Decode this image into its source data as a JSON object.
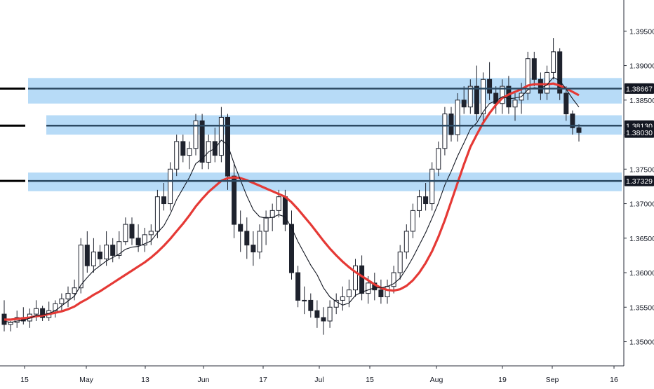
{
  "chart_data": {
    "type": "candlestick",
    "title": "",
    "xlabel": "",
    "ylabel": "",
    "ylim": [
      1.3465,
      1.3995
    ],
    "grid": false,
    "x_ticks": [
      "15",
      "May",
      "13",
      "Jun",
      "17",
      "Jul",
      "15",
      "Aug",
      "19",
      "Sep",
      "16"
    ],
    "y_ticks": [
      "1.35000",
      "1.35500",
      "1.36000",
      "1.36500",
      "1.37000",
      "1.37500",
      "1.38000",
      "1.38500",
      "1.39000",
      "1.39500"
    ],
    "levels": [
      {
        "label": "1.38667",
        "value": 1.38667,
        "zone": [
          1.3845,
          1.3882
        ]
      },
      {
        "label": "1.38130",
        "value": 1.3813,
        "zone": [
          1.38,
          1.3828
        ]
      },
      {
        "label": "1.37329",
        "value": 1.37329,
        "zone": [
          1.3718,
          1.3745
        ]
      }
    ],
    "last_price_label": "1.38030",
    "last_price": 1.3803,
    "colors": {
      "up_candle": "#ffffff",
      "down_candle": "#1e222d",
      "wick": "#1e222d",
      "fast_ma": "#131722",
      "slow_ma": "#e53935",
      "zone_fill": "#b3d9f7",
      "level_line": "#2c4a63",
      "left_marker": "#000000",
      "label_box": "#131722"
    },
    "candles": [
      [
        1.354,
        1.356,
        1.3515,
        1.3525
      ],
      [
        1.3525,
        1.353,
        1.3515,
        1.3528
      ],
      [
        1.3528,
        1.3545,
        1.352,
        1.3535
      ],
      [
        1.3535,
        1.355,
        1.3525,
        1.353
      ],
      [
        1.353,
        1.3548,
        1.352,
        1.354
      ],
      [
        1.354,
        1.356,
        1.353,
        1.3548
      ],
      [
        1.3548,
        1.3552,
        1.353,
        1.3535
      ],
      [
        1.3535,
        1.3558,
        1.353,
        1.3545
      ],
      [
        1.3545,
        1.356,
        1.3535,
        1.3555
      ],
      [
        1.3555,
        1.357,
        1.3545,
        1.3562
      ],
      [
        1.3562,
        1.358,
        1.355,
        1.357
      ],
      [
        1.357,
        1.359,
        1.356,
        1.3578
      ],
      [
        1.3578,
        1.365,
        1.357,
        1.364
      ],
      [
        1.364,
        1.366,
        1.36,
        1.361
      ],
      [
        1.361,
        1.365,
        1.36,
        1.363
      ],
      [
        1.363,
        1.364,
        1.361,
        1.362
      ],
      [
        1.362,
        1.366,
        1.361,
        1.364
      ],
      [
        1.364,
        1.365,
        1.3615,
        1.3625
      ],
      [
        1.3625,
        1.366,
        1.362,
        1.3645
      ],
      [
        1.3645,
        1.368,
        1.364,
        1.367
      ],
      [
        1.367,
        1.368,
        1.364,
        1.365
      ],
      [
        1.365,
        1.367,
        1.363,
        1.364
      ],
      [
        1.364,
        1.3665,
        1.363,
        1.3655
      ],
      [
        1.3655,
        1.367,
        1.364,
        1.366
      ],
      [
        1.366,
        1.372,
        1.365,
        1.371
      ],
      [
        1.371,
        1.373,
        1.369,
        1.37
      ],
      [
        1.37,
        1.376,
        1.369,
        1.375
      ],
      [
        1.375,
        1.38,
        1.374,
        1.379
      ],
      [
        1.379,
        1.38,
        1.376,
        1.377
      ],
      [
        1.377,
        1.379,
        1.375,
        1.378
      ],
      [
        1.378,
        1.383,
        1.377,
        1.382
      ],
      [
        1.382,
        1.383,
        1.375,
        1.376
      ],
      [
        1.376,
        1.38,
        1.375,
        1.379
      ],
      [
        1.379,
        1.381,
        1.376,
        1.377
      ],
      [
        1.377,
        1.384,
        1.376,
        1.3825
      ],
      [
        1.3825,
        1.383,
        1.372,
        1.374
      ],
      [
        1.374,
        1.376,
        1.365,
        1.367
      ],
      [
        1.367,
        1.369,
        1.363,
        1.366
      ],
      [
        1.366,
        1.368,
        1.362,
        1.364
      ],
      [
        1.364,
        1.366,
        1.361,
        1.363
      ],
      [
        1.363,
        1.367,
        1.362,
        1.366
      ],
      [
        1.366,
        1.369,
        1.364,
        1.368
      ],
      [
        1.368,
        1.37,
        1.366,
        1.369
      ],
      [
        1.369,
        1.372,
        1.368,
        1.371
      ],
      [
        1.371,
        1.372,
        1.366,
        1.367
      ],
      [
        1.367,
        1.369,
        1.359,
        1.36
      ],
      [
        1.36,
        1.361,
        1.355,
        1.356
      ],
      [
        1.356,
        1.358,
        1.354,
        1.356
      ],
      [
        1.356,
        1.357,
        1.3535,
        1.3545
      ],
      [
        1.3545,
        1.356,
        1.352,
        1.3535
      ],
      [
        1.3535,
        1.355,
        1.351,
        1.353
      ],
      [
        1.353,
        1.356,
        1.352,
        1.355
      ],
      [
        1.355,
        1.357,
        1.354,
        1.356
      ],
      [
        1.356,
        1.358,
        1.3545,
        1.3565
      ],
      [
        1.3565,
        1.359,
        1.355,
        1.3575
      ],
      [
        1.3575,
        1.362,
        1.3565,
        1.361
      ],
      [
        1.361,
        1.3625,
        1.356,
        1.357
      ],
      [
        1.357,
        1.3595,
        1.3555,
        1.3585
      ],
      [
        1.3585,
        1.36,
        1.356,
        1.3575
      ],
      [
        1.3575,
        1.359,
        1.3555,
        1.3565
      ],
      [
        1.3565,
        1.359,
        1.3555,
        1.358
      ],
      [
        1.358,
        1.361,
        1.357,
        1.36
      ],
      [
        1.36,
        1.364,
        1.359,
        1.363
      ],
      [
        1.363,
        1.367,
        1.362,
        1.366
      ],
      [
        1.366,
        1.37,
        1.365,
        1.369
      ],
      [
        1.369,
        1.372,
        1.368,
        1.371
      ],
      [
        1.371,
        1.373,
        1.369,
        1.37
      ],
      [
        1.37,
        1.376,
        1.369,
        1.375
      ],
      [
        1.375,
        1.379,
        1.374,
        1.378
      ],
      [
        1.378,
        1.384,
        1.377,
        1.383
      ],
      [
        1.383,
        1.384,
        1.379,
        1.38
      ],
      [
        1.38,
        1.386,
        1.379,
        1.385
      ],
      [
        1.385,
        1.387,
        1.383,
        1.384
      ],
      [
        1.384,
        1.388,
        1.383,
        1.387
      ],
      [
        1.387,
        1.39,
        1.382,
        1.383
      ],
      [
        1.383,
        1.389,
        1.382,
        1.388
      ],
      [
        1.388,
        1.3905,
        1.385,
        1.386
      ],
      [
        1.386,
        1.387,
        1.383,
        1.3845
      ],
      [
        1.3845,
        1.388,
        1.383,
        1.387
      ],
      [
        1.387,
        1.3885,
        1.383,
        1.384
      ],
      [
        1.384,
        1.386,
        1.382,
        1.385
      ],
      [
        1.385,
        1.3875,
        1.383,
        1.386
      ],
      [
        1.386,
        1.392,
        1.385,
        1.391
      ],
      [
        1.391,
        1.392,
        1.387,
        1.388
      ],
      [
        1.388,
        1.389,
        1.385,
        1.386
      ],
      [
        1.386,
        1.39,
        1.385,
        1.389
      ],
      [
        1.389,
        1.394,
        1.388,
        1.392
      ],
      [
        1.392,
        1.3925,
        1.385,
        1.386
      ],
      [
        1.386,
        1.387,
        1.382,
        1.383
      ],
      [
        1.383,
        1.3835,
        1.38,
        1.381
      ],
      [
        1.381,
        1.3815,
        1.379,
        1.3803
      ]
    ],
    "fast_ma": [
      1.353,
      1.3528,
      1.353,
      1.3531,
      1.3534,
      1.3538,
      1.3539,
      1.3541,
      1.3545,
      1.3552,
      1.3559,
      1.3566,
      1.3582,
      1.3593,
      1.3603,
      1.361,
      1.3617,
      1.3622,
      1.3627,
      1.3634,
      1.3637,
      1.3638,
      1.3642,
      1.3646,
      1.3658,
      1.3668,
      1.3685,
      1.3706,
      1.3722,
      1.3738,
      1.3758,
      1.3765,
      1.3775,
      1.378,
      1.3792,
      1.3785,
      1.3758,
      1.3734,
      1.3711,
      1.3691,
      1.3681,
      1.3679,
      1.368,
      1.3684,
      1.3681,
      1.3665,
      1.3645,
      1.3628,
      1.3611,
      1.3597,
      1.3578,
      1.3565,
      1.3558,
      1.3553,
      1.3556,
      1.3567,
      1.3572,
      1.3575,
      1.3578,
      1.3578,
      1.358,
      1.3584,
      1.3592,
      1.3606,
      1.3622,
      1.364,
      1.3658,
      1.3679,
      1.3701,
      1.3727,
      1.3747,
      1.3769,
      1.3788,
      1.3808,
      1.3817,
      1.3833,
      1.3845,
      1.3849,
      1.3855,
      1.3852,
      1.3853,
      1.3855,
      1.3865,
      1.3868,
      1.3867,
      1.3872,
      1.3883,
      1.3878,
      1.3866,
      1.3852,
      1.384
    ],
    "slow_ma": [
      1.3532,
      1.3532,
      1.3533,
      1.3534,
      1.3535,
      1.3537,
      1.3538,
      1.354,
      1.3542,
      1.3544,
      1.3547,
      1.3551,
      1.3557,
      1.3562,
      1.3568,
      1.3573,
      1.3579,
      1.3585,
      1.3591,
      1.3597,
      1.3603,
      1.3609,
      1.3615,
      1.3622,
      1.363,
      1.3639,
      1.3649,
      1.366,
      1.3671,
      1.3683,
      1.3696,
      1.3707,
      1.3717,
      1.3725,
      1.3733,
      1.3737,
      1.3738,
      1.3737,
      1.3734,
      1.373,
      1.3726,
      1.3722,
      1.3718,
      1.3714,
      1.371,
      1.3702,
      1.3692,
      1.3681,
      1.367,
      1.3658,
      1.3646,
      1.3635,
      1.3625,
      1.3616,
      1.3608,
      1.3601,
      1.3595,
      1.3589,
      1.3583,
      1.3578,
      1.3575,
      1.3574,
      1.3576,
      1.3581,
      1.3589,
      1.36,
      1.3614,
      1.3631,
      1.3652,
      1.3676,
      1.3703,
      1.373,
      1.3757,
      1.3782,
      1.38,
      1.3817,
      1.3831,
      1.3843,
      1.3853,
      1.3858,
      1.3862,
      1.3866,
      1.3871,
      1.3873,
      1.3873,
      1.3873,
      1.3874,
      1.3871,
      1.3867,
      1.3862,
      1.3857
    ]
  }
}
